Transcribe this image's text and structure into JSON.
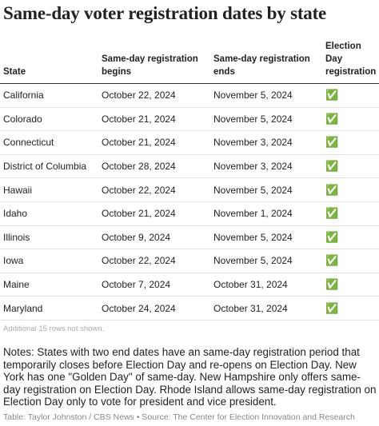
{
  "header": {
    "title": "Same-day voter registration dates by state"
  },
  "table": {
    "columns": [
      "State",
      "Same-day registration begins",
      "Same-day registration ends",
      "Election Day registration"
    ],
    "rows": [
      [
        "California",
        "October 22, 2024",
        "November 5, 2024",
        "✅"
      ],
      [
        "Colorado",
        "October 21, 2024",
        "November 5, 2024",
        "✅"
      ],
      [
        "Connecticut",
        "October 21, 2024",
        "November 3, 2024",
        "✅"
      ],
      [
        "District of Columbia",
        "October 28, 2024",
        "November 3, 2024",
        "✅"
      ],
      [
        "Hawaii",
        "October 22, 2024",
        "November 5, 2024",
        "✅"
      ],
      [
        "Idaho",
        "October 21, 2024",
        "November 1, 2024",
        "✅"
      ],
      [
        "Illinois",
        "October 9, 2024",
        "November 5, 2024",
        "✅"
      ],
      [
        "Iowa",
        "October 22, 2024",
        "November 5, 2024",
        "✅"
      ],
      [
        "Maine",
        "October 7, 2024",
        "October 31, 2024",
        "✅"
      ],
      [
        "Maryland",
        "October 24, 2024",
        "October 31, 2024",
        "✅"
      ]
    ],
    "more_rows": "Additional 15 rows not shown."
  },
  "footer": {
    "notes": "Notes: States with two end dates have an same-day registration period that temporarily closes before Election Day and re-opens on Election Day. New York has one \"Golden Day\" of same-day. New Hampshire only offers same-day registration on Election Day. Rhode Island allows same-day registration on Election Day only to vote for president and vice president.",
    "source": "Table: Taylor Johnston / CBS News • Source: The Center for Election Innovation and Research"
  }
}
